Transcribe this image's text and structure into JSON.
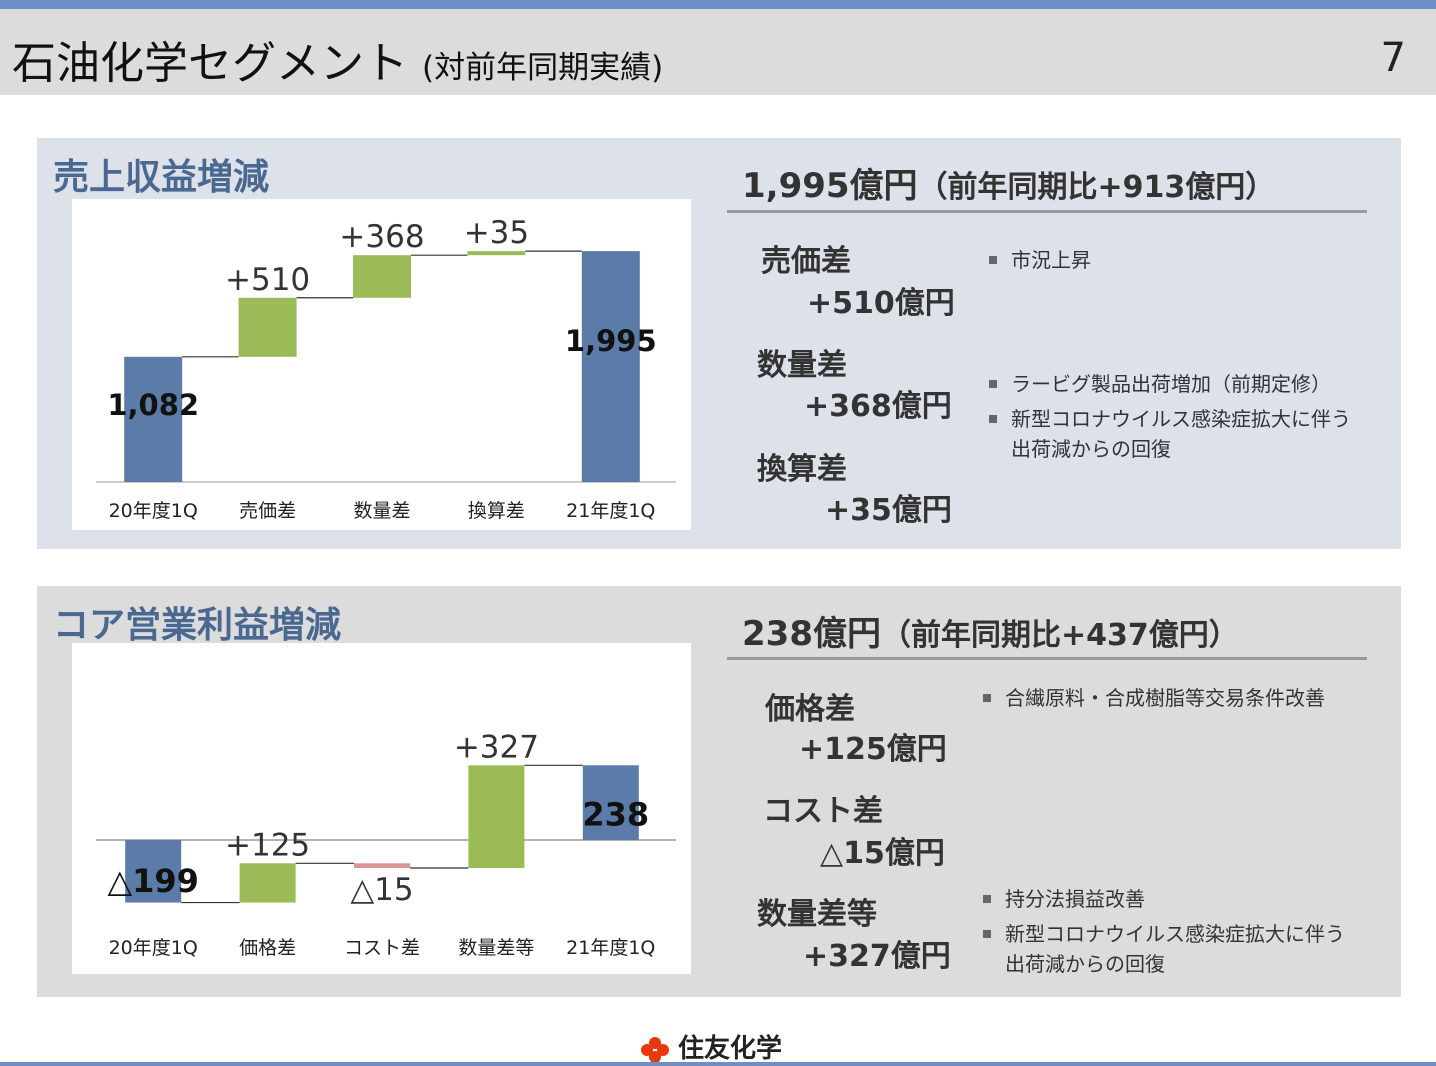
{
  "slide": {
    "title": "石油化学セグメント",
    "subtitle": "(対前年同期実績)",
    "page_number": "7"
  },
  "revenue": {
    "panel_title": "売上収益増減",
    "summary_main": "1,995億円",
    "summary_paren": "（前年同期比+913億円）",
    "factors": [
      {
        "name": "売価差",
        "value": "+510億円",
        "bullets": [
          [
            "市況上昇"
          ]
        ]
      },
      {
        "name": "数量差",
        "value": "+368億円",
        "bullets": [
          [
            "ラービグ製品出荷増加（前期定修）"
          ],
          [
            "新型コロナウイルス感染症拡大に伴う",
            "出荷減からの回復"
          ]
        ]
      },
      {
        "name": "換算差",
        "value": "+35億円",
        "bullets": []
      }
    ]
  },
  "profit": {
    "panel_title": "コア営業利益増減",
    "summary_main": "238億円",
    "summary_paren": "（前年同期比+437億円）",
    "factors": [
      {
        "name": "価格差",
        "value": "+125億円",
        "bullets": [
          [
            "合繊原料・合成樹脂等交易条件改善"
          ]
        ]
      },
      {
        "name": "コスト差",
        "value": "△15億円",
        "bullets": []
      },
      {
        "name": "数量差等",
        "value": "+327億円",
        "bullets": [
          [
            "持分法損益改善"
          ],
          [
            "新型コロナウイルス感染症拡大に伴う",
            "出荷減からの回復"
          ]
        ]
      }
    ]
  },
  "chart_data": [
    {
      "type": "bar",
      "subtype": "waterfall",
      "title": "売上収益増減",
      "categories": [
        "20年度1Q",
        "売価差",
        "数量差",
        "換算差",
        "21年度1Q"
      ],
      "values": [
        1082,
        510,
        368,
        35,
        1995
      ],
      "kinds": [
        "total",
        "delta",
        "delta",
        "delta",
        "total"
      ],
      "data_labels": [
        "1,082",
        "+510",
        "+368",
        "+35",
        "1,995"
      ],
      "ylim": [
        0,
        2100
      ],
      "colors": {
        "total": "#5b7ba8",
        "increase": "#9bbb59",
        "decrease": "#d99694"
      }
    },
    {
      "type": "bar",
      "subtype": "waterfall",
      "title": "コア営業利益増減",
      "categories": [
        "20年度1Q",
        "価格差",
        "コスト差",
        "数量差等",
        "21年度1Q"
      ],
      "values": [
        -199,
        125,
        -15,
        327,
        238
      ],
      "kinds": [
        "total",
        "delta",
        "delta",
        "delta",
        "total"
      ],
      "data_labels": [
        "△199",
        "+125",
        "△15",
        "+327",
        "238"
      ],
      "ylim": [
        -280,
        500
      ],
      "colors": {
        "total": "#5b7ba8",
        "increase": "#9bbb59",
        "decrease": "#d99694"
      }
    }
  ],
  "footer": {
    "company": "住友化学",
    "logo_color": "#e8380d"
  }
}
